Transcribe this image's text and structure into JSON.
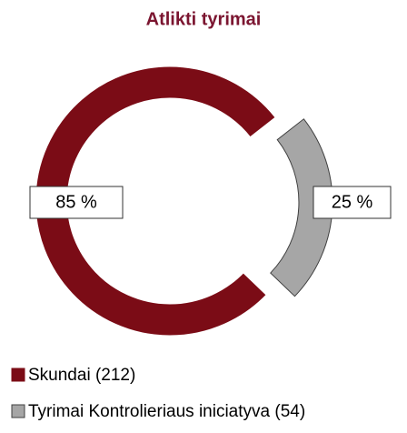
{
  "chart_data": {
    "type": "donut",
    "title": "Atlikti tyrimai",
    "series": [
      {
        "name": "Skundai (212)",
        "color": "#7b0c16"
      },
      {
        "name": "Tyrimai Kontrolieriaus iniciatyva (54)",
        "color": "#a6a6a6"
      }
    ],
    "values": [
      85,
      25
    ],
    "value_labels": [
      "85 %",
      "25 %"
    ]
  }
}
